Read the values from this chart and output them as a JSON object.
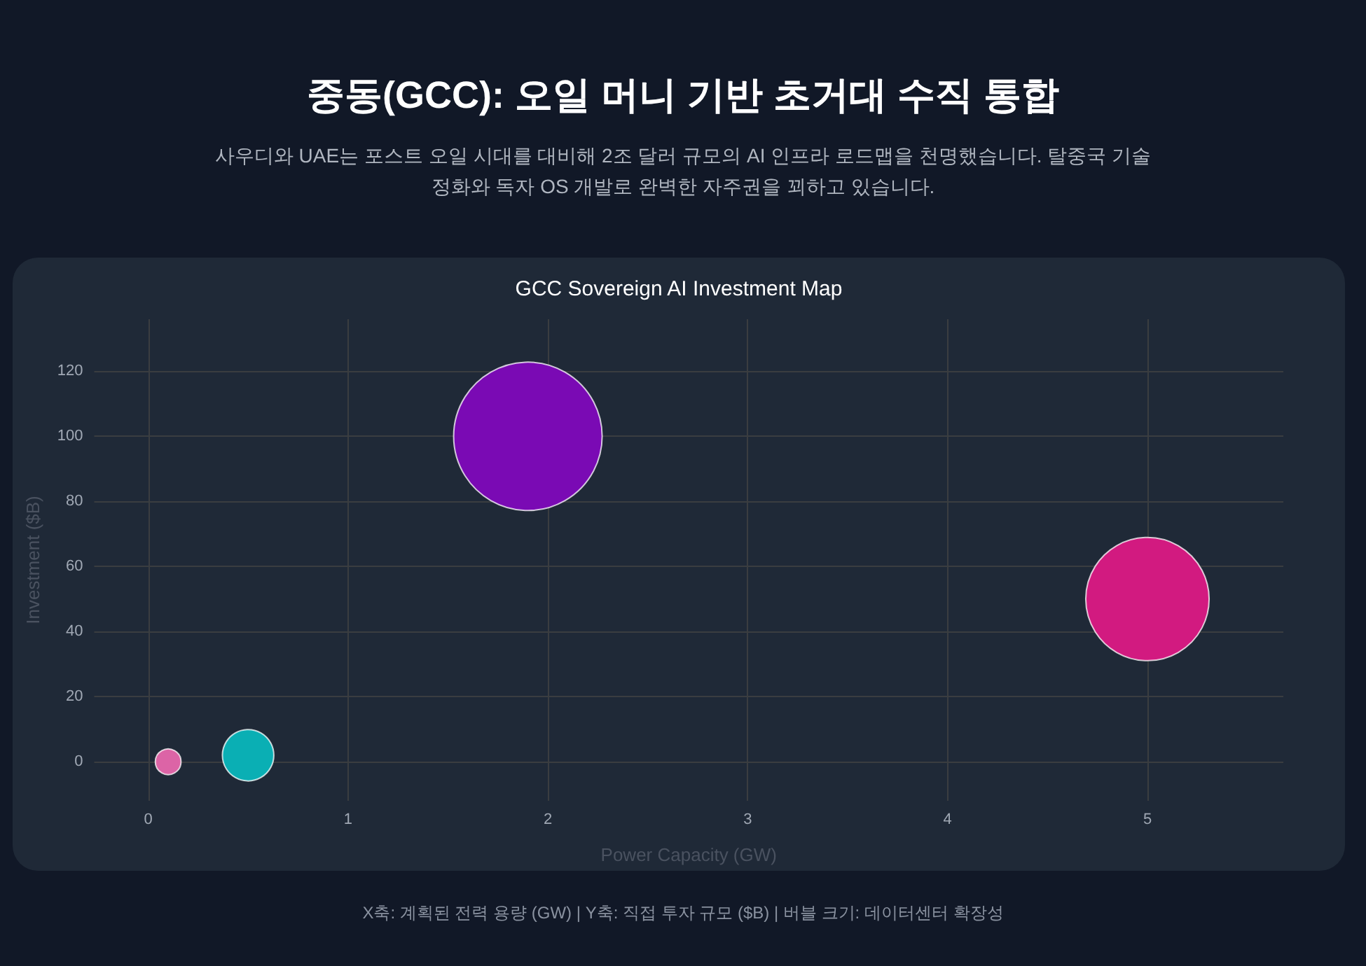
{
  "chart_data": {
    "type": "bubble",
    "title": "중동(GCC): 오일 머니 기반 초거대 수직 통합",
    "subtitle": "사우디와 UAE는 포스트 오일 시대를 대비해 2조 달러 규모의 AI 인프라 로드맵을 천명했습니다. 탈중국 기술 정화와 독자 OS 개발로 완벽한 자주권을 꾀하고 있습니다.",
    "annotations": [
      "GCC Sovereign AI Investment Map",
      "X축: 계획된 전력 용량 (GW) | Y축: 직접 투자 규모 ($B) | 버블 크기: 데이터센터 확장성"
    ],
    "xlabel": "Power Capacity (GW)",
    "ylabel": "Investment ($B)",
    "x": [
      0.1,
      0.5,
      1.9,
      5
    ],
    "values": [
      0,
      2,
      100,
      50
    ],
    "sizes": [
      0.03,
      0.12,
      1,
      0.69
    ],
    "colors": [
      "#dc64a6",
      "#0aafb4",
      "#7a0ab4",
      "#d21a80"
    ],
    "xlim": [
      -0.27,
      5.68
    ],
    "xticks": [
      0,
      1,
      2,
      3,
      4,
      5
    ],
    "ylim": [
      -12,
      136
    ],
    "yticks": [
      0,
      20,
      40,
      60,
      80,
      100,
      120
    ],
    "grid": true,
    "marker": "circle"
  }
}
